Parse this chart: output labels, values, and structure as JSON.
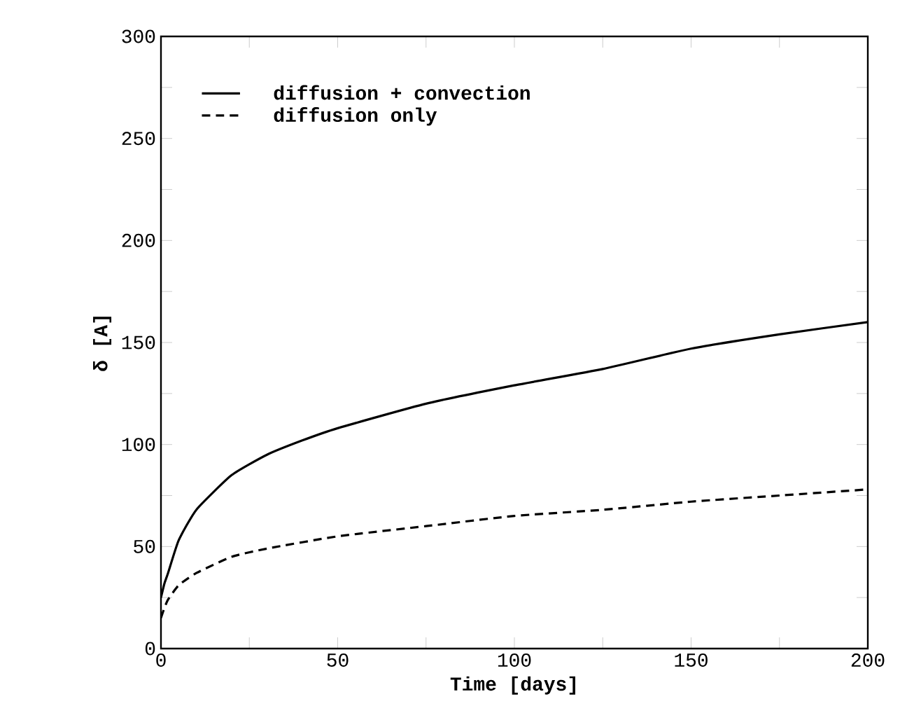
{
  "chart_data": {
    "type": "line",
    "xlabel": "Time [days]",
    "ylabel": "δ   [A]",
    "xlim": [
      0,
      200
    ],
    "ylim": [
      0,
      300
    ],
    "xticks": [
      0,
      50,
      100,
      150,
      200
    ],
    "yticks": [
      0,
      50,
      100,
      150,
      200,
      250,
      300
    ],
    "legend": "top left",
    "grid": false,
    "marker": "none",
    "series": [
      {
        "name": "diffusion + convection",
        "color": "#000000",
        "line_style": "solid",
        "x": [
          0,
          1,
          2,
          5,
          10,
          20,
          30,
          40,
          50,
          75,
          100,
          125,
          150,
          175,
          200
        ],
        "values": [
          25,
          32,
          37,
          53,
          68,
          85,
          95,
          102,
          108,
          120,
          129,
          137,
          147,
          154,
          160
        ]
      },
      {
        "name": "diffusion only",
        "color": "#000000",
        "line_style": "dashed",
        "x": [
          0,
          1,
          2,
          5,
          10,
          20,
          30,
          50,
          75,
          100,
          125,
          150,
          175,
          200
        ],
        "values": [
          15,
          20,
          24,
          31,
          37,
          45,
          49,
          55,
          60,
          65,
          68,
          72,
          75,
          78
        ]
      }
    ]
  }
}
